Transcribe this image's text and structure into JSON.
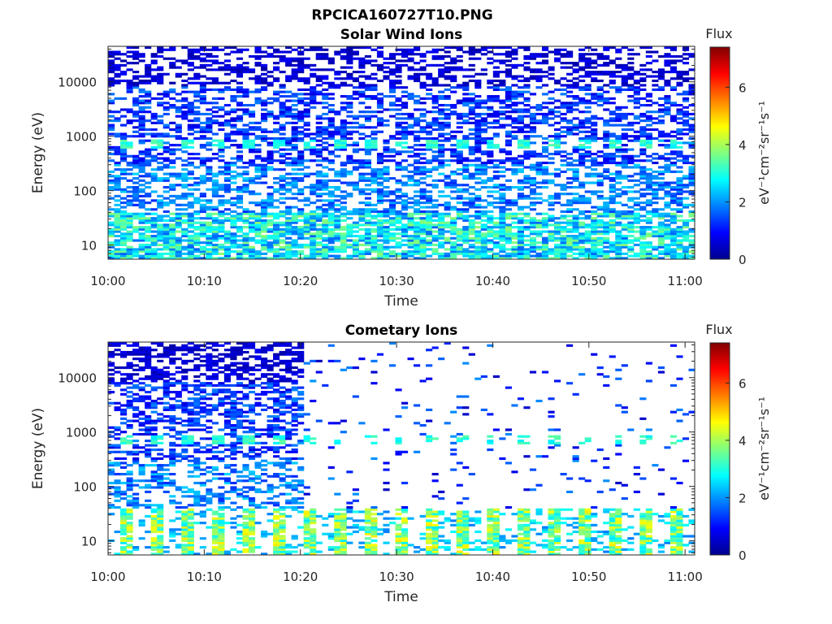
{
  "figure": {
    "filename": "RPCICA160727T10.PNG"
  },
  "colors": {
    "axis": "#262626",
    "colormap": "jet",
    "background": "#ffffff"
  },
  "chart_data": [
    {
      "type": "heatmap",
      "title": "Solar Wind Ions",
      "xlabel": "Time",
      "ylabel": "Energy (eV)",
      "x_ticks": [
        "10:00",
        "10:10",
        "10:20",
        "10:30",
        "10:40",
        "10:50",
        "11:00"
      ],
      "xlim": [
        "10:00",
        "11:01"
      ],
      "y_scale": "log",
      "y_ticks": [
        "10",
        "100",
        "1000",
        "10000"
      ],
      "ylim": [
        5.5,
        45000
      ],
      "colorbar": {
        "title": "Flux",
        "label": "eV⁻¹cm⁻²sr⁻¹s⁻¹",
        "ticks": [
          "0",
          "2",
          "4",
          "6"
        ],
        "range": [
          0,
          7.4
        ]
      },
      "features": [
        {
          "energy_range": [
            5.5,
            40
          ],
          "time_range": [
            "10:00",
            "11:01"
          ],
          "flux": [
            1.5,
            3.8
          ],
          "note": "low-energy band, densest"
        },
        {
          "energy_range": [
            600,
            900
          ],
          "time_range": [
            "10:00",
            "11:01"
          ],
          "flux": [
            2.5,
            3.5
          ],
          "note": "periodic pulses ~3.2 min"
        },
        {
          "energy_range": [
            40,
            45000
          ],
          "time_range": [
            "10:00",
            "11:01"
          ],
          "flux": [
            0.2,
            2.5
          ],
          "note": "scattered background"
        }
      ]
    },
    {
      "type": "heatmap",
      "title": "Cometary Ions",
      "xlabel": "Time",
      "ylabel": "Energy (eV)",
      "x_ticks": [
        "10:00",
        "10:10",
        "10:20",
        "10:30",
        "10:40",
        "10:50",
        "11:00"
      ],
      "xlim": [
        "10:00",
        "11:01"
      ],
      "y_scale": "log",
      "y_ticks": [
        "10",
        "100",
        "1000",
        "10000"
      ],
      "ylim": [
        5.5,
        45000
      ],
      "colorbar": {
        "title": "Flux",
        "label": "eV⁻¹cm⁻²sr⁻¹s⁻¹",
        "ticks": [
          "0",
          "2",
          "4",
          "6"
        ],
        "range": [
          0,
          7.4
        ]
      },
      "features": [
        {
          "energy_range": [
            5.5,
            40
          ],
          "time_range": [
            "10:00",
            "11:01"
          ],
          "flux": [
            2.0,
            4.8
          ],
          "note": "pulsed low-energy band"
        },
        {
          "energy_range": [
            600,
            900
          ],
          "time_range": [
            "10:00",
            "10:20"
          ],
          "flux": [
            2.5,
            3.5
          ],
          "note": "periodic pulses"
        },
        {
          "energy_range": [
            40,
            45000
          ],
          "time_range": [
            "10:00",
            "10:20"
          ],
          "flux": [
            0.2,
            2.5
          ],
          "note": "dense before 10:20"
        },
        {
          "energy_range": [
            40,
            45000
          ],
          "time_range": [
            "10:20",
            "11:01"
          ],
          "flux": [
            0.2,
            2.0
          ],
          "note": "sparse after 10:20"
        }
      ]
    }
  ]
}
